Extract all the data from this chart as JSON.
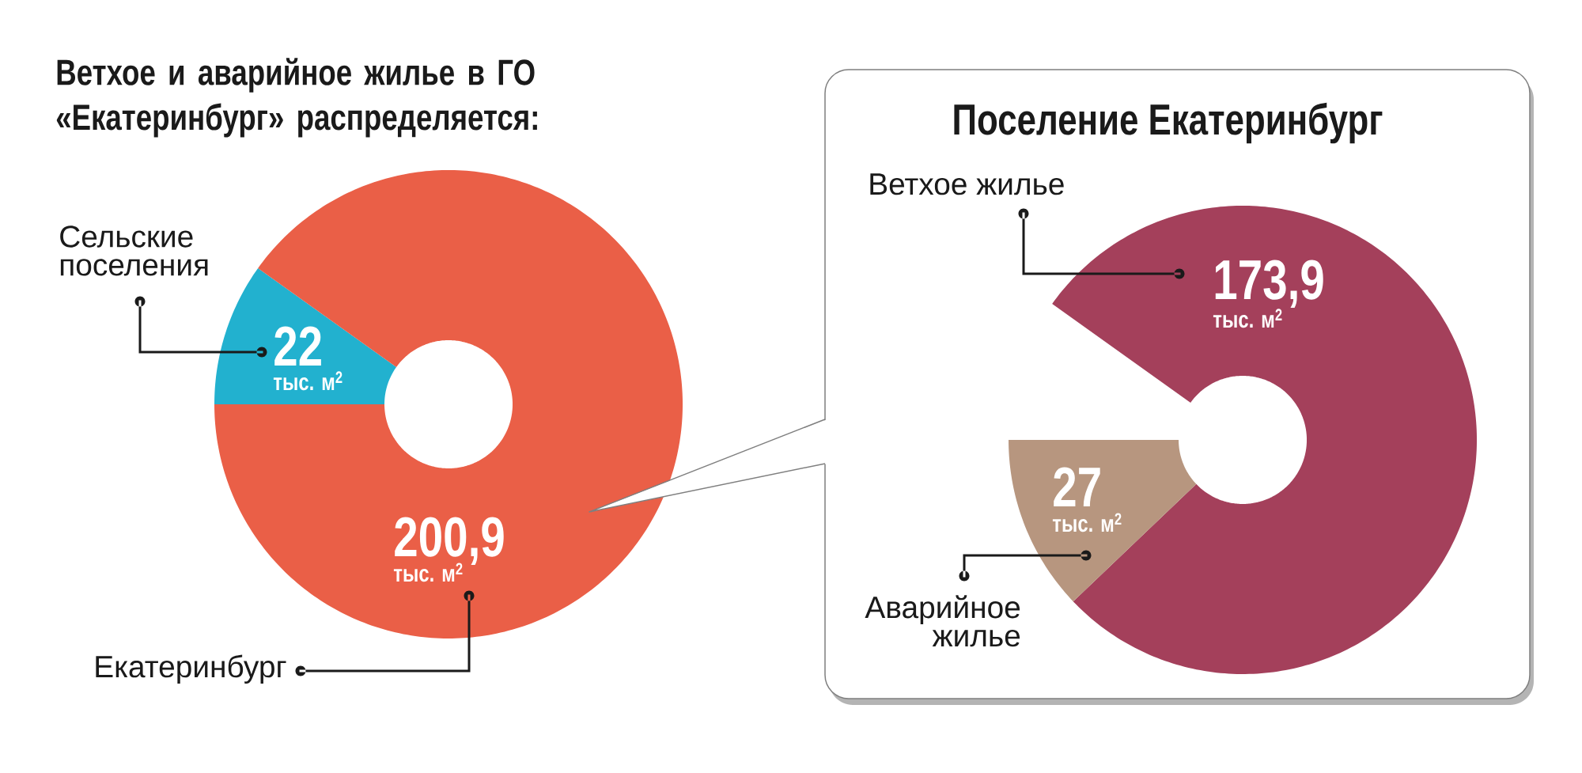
{
  "chart_data": [
    {
      "type": "donut",
      "title": "Ветхое и аварийное жилье в ГО «Екатеринбург» распределяется:",
      "categories": [
        "Сельские поселения",
        "Екатеринбург"
      ],
      "values": [
        22,
        200.9
      ],
      "colors": [
        "#22b1cf",
        "#ea5f47"
      ],
      "value_labels": [
        "22",
        "200,9"
      ],
      "annotations": [
        "тыс. м$^{2}$",
        "тыс. м$^{2}$"
      ]
    },
    {
      "type": "donut",
      "title": "Поселение Екатеринбург",
      "categories": [
        "Ветхое жилье",
        "Аварийное жилье"
      ],
      "values": [
        173.9,
        27
      ],
      "colors": [
        "#a4405b",
        "#b7967f"
      ],
      "value_labels": [
        "173,9",
        "27"
      ],
      "annotations": [
        "тыс. м$^{2}$",
        "тыс. м$^{2}$"
      ]
    }
  ]
}
